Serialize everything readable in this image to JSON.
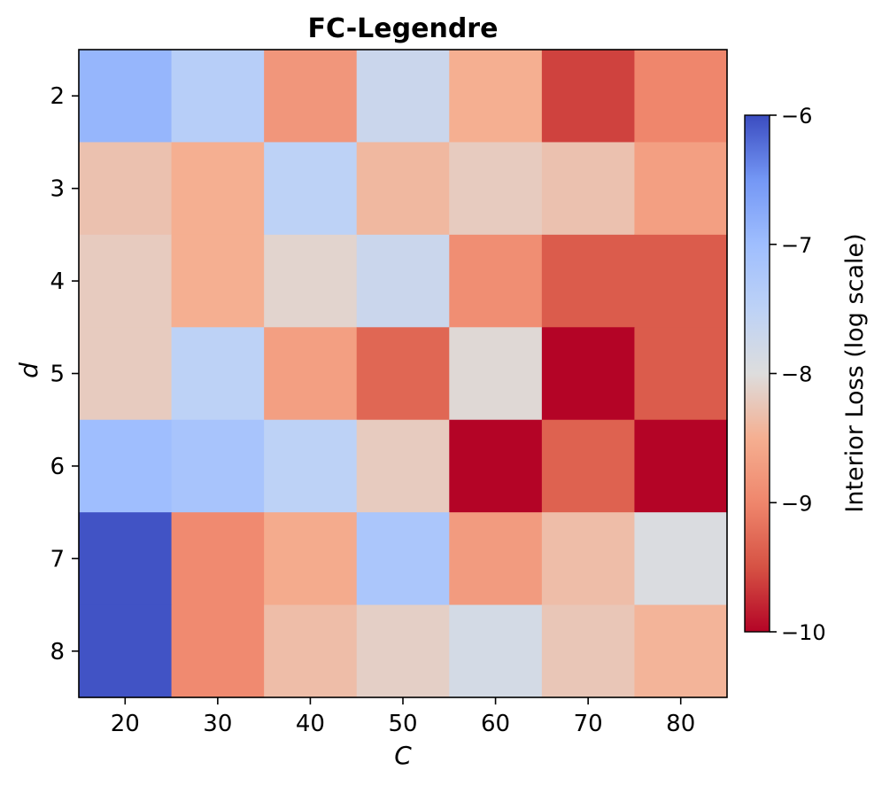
{
  "chart_data": {
    "type": "heatmap",
    "title": "FC-Legendre",
    "xlabel": "C",
    "ylabel": "d",
    "x_categories": [
      "20",
      "30",
      "40",
      "50",
      "60",
      "70",
      "80"
    ],
    "y_categories": [
      "2",
      "3",
      "4",
      "5",
      "6",
      "7",
      "8"
    ],
    "values": [
      [
        -6.9,
        -7.4,
        -8.8,
        -7.7,
        -8.5,
        -9.6,
        -9.0
      ],
      [
        -8.3,
        -8.5,
        -7.5,
        -8.4,
        -8.2,
        -8.3,
        -8.7
      ],
      [
        -8.2,
        -8.5,
        -8.1,
        -7.7,
        -8.9,
        -9.4,
        -9.4
      ],
      [
        -8.2,
        -7.5,
        -8.7,
        -9.3,
        -8.05,
        -10.0,
        -9.4
      ],
      [
        -7.0,
        -7.15,
        -7.5,
        -8.2,
        -10.0,
        -9.35,
        -10.0
      ],
      [
        -6.05,
        -8.95,
        -8.55,
        -7.2,
        -8.75,
        -8.35,
        -7.95
      ],
      [
        -6.05,
        -8.95,
        -8.35,
        -8.15,
        -7.85,
        -8.25,
        -8.45
      ]
    ],
    "colorbar": {
      "label": "Interior Loss (log scale)",
      "range": [
        -10,
        -6
      ],
      "ticks": [
        "−6",
        "−7",
        "−8",
        "−9",
        "−10"
      ],
      "tick_values": [
        -6,
        -7,
        -8,
        -9,
        -10
      ],
      "colormap": "coolwarm",
      "high_color": "#3b4cc0",
      "mid_color": "#dddddd",
      "low_color": "#b40426"
    }
  }
}
